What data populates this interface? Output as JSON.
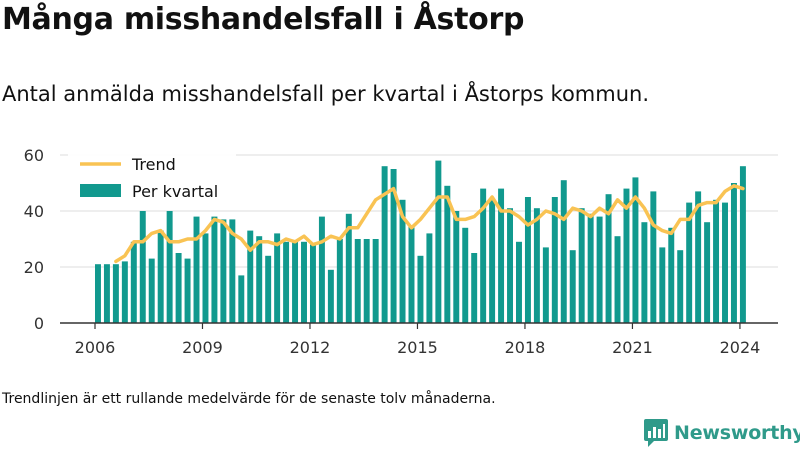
{
  "header": {
    "title": "Många misshandelsfall i Åstorp",
    "subtitle": "Antal anmälda misshandelsfall per kvartal i Åstorps kommun."
  },
  "footer": {
    "note": "Trendlinjen är ett rullande medelvärde för de senaste tolv månaderna.",
    "brand": "Newsworthy"
  },
  "colors": {
    "bars": "#11998e",
    "trend": "#f9c353",
    "grid": "#dddddd",
    "axis": "#333333",
    "brand": "#2f9a8a"
  },
  "chart_data": {
    "type": "bar",
    "ylim": [
      0,
      60
    ],
    "yticks": [
      0,
      20,
      40,
      60
    ],
    "xticks": [
      "2006",
      "2009",
      "2012",
      "2015",
      "2018",
      "2021",
      "2024"
    ],
    "legend": {
      "position": "top-left",
      "entries": [
        "Trend",
        "Per kvartal"
      ]
    },
    "grid": true,
    "series": [
      {
        "name": "Per kvartal",
        "type": "bar",
        "x": [
          "2006K1",
          "2006K2",
          "2006K3",
          "2006K4",
          "2007K1",
          "2007K2",
          "2007K3",
          "2007K4",
          "2008K1",
          "2008K2",
          "2008K3",
          "2008K4",
          "2009K1",
          "2009K2",
          "2009K3",
          "2009K4",
          "2010K1",
          "2010K2",
          "2010K3",
          "2010K4",
          "2011K1",
          "2011K2",
          "2011K3",
          "2011K4",
          "2012K1",
          "2012K2",
          "2012K3",
          "2012K4",
          "2013K1",
          "2013K2",
          "2013K3",
          "2013K4",
          "2014K1",
          "2014K2",
          "2014K3",
          "2014K4",
          "2015K1",
          "2015K2",
          "2015K3",
          "2015K4",
          "2016K1",
          "2016K2",
          "2016K3",
          "2016K4",
          "2017K1",
          "2017K2",
          "2017K3",
          "2017K4",
          "2018K1",
          "2018K2",
          "2018K3",
          "2018K4",
          "2019K1",
          "2019K2",
          "2019K3",
          "2019K4",
          "2020K1",
          "2020K2",
          "2020K3",
          "2020K4",
          "2021K1",
          "2021K2",
          "2021K3",
          "2021K4",
          "2022K1",
          "2022K2",
          "2022K3",
          "2022K4",
          "2023K1",
          "2023K2",
          "2023K3",
          "2023K4",
          "2024K1"
        ],
        "values": [
          21,
          21,
          21,
          22,
          29,
          40,
          23,
          33,
          40,
          25,
          23,
          38,
          32,
          38,
          37,
          37,
          17,
          33,
          31,
          24,
          32,
          29,
          29,
          29,
          28,
          38,
          19,
          30,
          39,
          30,
          30,
          30,
          56,
          55,
          44,
          35,
          24,
          32,
          58,
          49,
          40,
          34,
          25,
          48,
          44,
          48,
          41,
          29,
          45,
          41,
          27,
          45,
          51,
          26,
          41,
          39,
          38,
          46,
          31,
          48,
          52,
          36,
          47,
          27,
          34,
          26,
          43,
          47,
          36,
          44,
          43,
          50,
          56
        ]
      },
      {
        "name": "Trend",
        "type": "line",
        "x": [
          "2006K3",
          "2006K4",
          "2007K1",
          "2007K2",
          "2007K3",
          "2007K4",
          "2008K1",
          "2008K2",
          "2008K3",
          "2008K4",
          "2009K1",
          "2009K2",
          "2009K3",
          "2009K4",
          "2010K1",
          "2010K2",
          "2010K3",
          "2010K4",
          "2011K1",
          "2011K2",
          "2011K3",
          "2011K4",
          "2012K1",
          "2012K2",
          "2012K3",
          "2012K4",
          "2013K1",
          "2013K2",
          "2013K3",
          "2013K4",
          "2014K1",
          "2014K2",
          "2014K3",
          "2014K4",
          "2015K1",
          "2015K2",
          "2015K3",
          "2015K4",
          "2016K1",
          "2016K2",
          "2016K3",
          "2016K4",
          "2017K1",
          "2017K2",
          "2017K3",
          "2017K4",
          "2018K1",
          "2018K2",
          "2018K3",
          "2018K4",
          "2019K1",
          "2019K2",
          "2019K3",
          "2019K4",
          "2020K1",
          "2020K2",
          "2020K3",
          "2020K4",
          "2021K1",
          "2021K2",
          "2021K3",
          "2021K4",
          "2022K1",
          "2022K2",
          "2022K3",
          "2022K4",
          "2023K1",
          "2023K2",
          "2023K3",
          "2023K4",
          "2024K1"
        ],
        "values": [
          22,
          24,
          29,
          29,
          32,
          33,
          29,
          29,
          30,
          30,
          33,
          37,
          36,
          32,
          30,
          26,
          29,
          29,
          28,
          30,
          29,
          31,
          28,
          29,
          31,
          30,
          34,
          34,
          39,
          44,
          46,
          48,
          38,
          34,
          37,
          41,
          45,
          45,
          37,
          37,
          38,
          41,
          45,
          40,
          40,
          38,
          35,
          37,
          40,
          39,
          37,
          41,
          40,
          38,
          41,
          39,
          44,
          41,
          45,
          41,
          35,
          33,
          32,
          37,
          37,
          42,
          43,
          43,
          47,
          49,
          48
        ]
      }
    ]
  }
}
